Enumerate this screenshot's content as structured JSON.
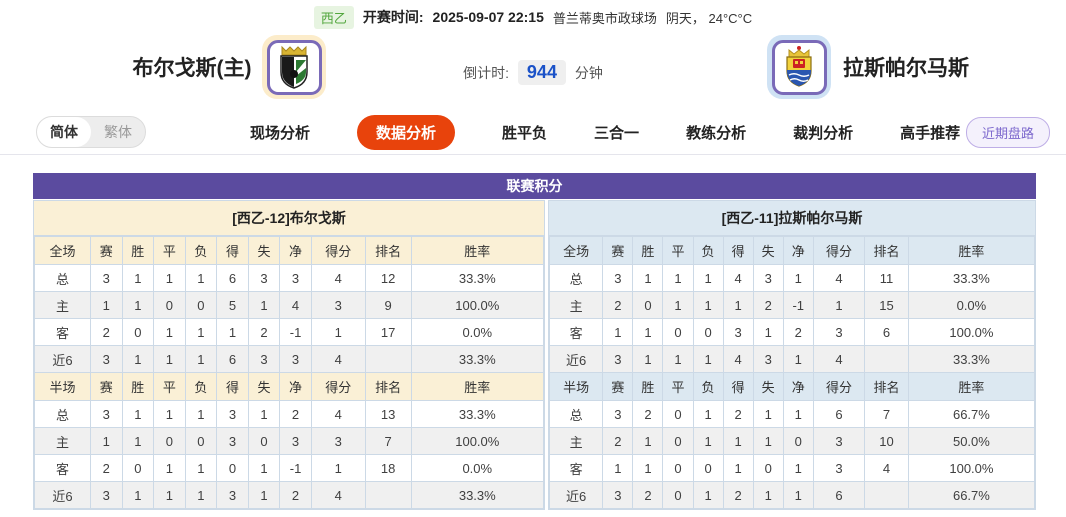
{
  "topbar": {
    "league_badge": "西乙",
    "kickoff_label": "开赛时间:",
    "kickoff_time": "2025-09-07 22:15",
    "venue": "普兰蒂奥市政球场",
    "weather": "阴天， 24°C°C"
  },
  "header": {
    "home_team": "布尔戈斯(主)",
    "away_team": "拉斯帕尔马斯",
    "countdown_label": "倒计时:",
    "countdown_value": "944",
    "countdown_unit": "分钟"
  },
  "nav": {
    "lang_simplified": "简体",
    "lang_traditional": "繁体",
    "tabs": [
      {
        "label": "现场分析",
        "active": false
      },
      {
        "label": "数据分析",
        "active": true
      },
      {
        "label": "胜平负",
        "active": false
      },
      {
        "label": "三合一",
        "active": false
      },
      {
        "label": "教练分析",
        "active": false
      },
      {
        "label": "裁判分析",
        "active": false
      },
      {
        "label": "高手推荐",
        "active": false
      }
    ],
    "recent_button": "近期盘路"
  },
  "stats": {
    "title": "联赛积分",
    "full_columns": [
      "全场",
      "赛",
      "胜",
      "平",
      "负",
      "得",
      "失",
      "净",
      "得分",
      "排名",
      "胜率"
    ],
    "half_columns": [
      "半场",
      "赛",
      "胜",
      "平",
      "负",
      "得",
      "失",
      "净",
      "得分",
      "排名",
      "胜率"
    ],
    "left": {
      "team_header": "[西乙-12]布尔戈斯",
      "full_rows": [
        {
          "label": "总",
          "type": "total",
          "cells": [
            "3",
            "1",
            "1",
            "1",
            "6",
            "3",
            "3",
            "4",
            "12",
            "33.3%"
          ]
        },
        {
          "label": "主",
          "type": "home",
          "cells": [
            "1",
            "1",
            "0",
            "0",
            "5",
            "1",
            "4",
            "3",
            "9",
            "100.0%"
          ]
        },
        {
          "label": "客",
          "type": "away",
          "cells": [
            "2",
            "0",
            "1",
            "1",
            "1",
            "2",
            "-1",
            "1",
            "17",
            "0.0%"
          ]
        },
        {
          "label": "近6",
          "type": "recent",
          "cells": [
            "3",
            "1",
            "1",
            "1",
            "6",
            "3",
            "3",
            "4",
            "",
            "33.3%"
          ]
        }
      ],
      "half_rows": [
        {
          "label": "总",
          "type": "total",
          "cells": [
            "3",
            "1",
            "1",
            "1",
            "3",
            "1",
            "2",
            "4",
            "13",
            "33.3%"
          ]
        },
        {
          "label": "主",
          "type": "home",
          "cells": [
            "1",
            "1",
            "0",
            "0",
            "3",
            "0",
            "3",
            "3",
            "7",
            "100.0%"
          ]
        },
        {
          "label": "客",
          "type": "away",
          "cells": [
            "2",
            "0",
            "1",
            "1",
            "0",
            "1",
            "-1",
            "1",
            "18",
            "0.0%"
          ]
        },
        {
          "label": "近6",
          "type": "recent",
          "cells": [
            "3",
            "1",
            "1",
            "1",
            "3",
            "1",
            "2",
            "4",
            "",
            "33.3%"
          ]
        }
      ]
    },
    "right": {
      "team_header": "[西乙-11]拉斯帕尔马斯",
      "full_rows": [
        {
          "label": "总",
          "type": "total",
          "cells": [
            "3",
            "1",
            "1",
            "1",
            "4",
            "3",
            "1",
            "4",
            "11",
            "33.3%"
          ]
        },
        {
          "label": "主",
          "type": "home",
          "cells": [
            "2",
            "0",
            "1",
            "1",
            "1",
            "2",
            "-1",
            "1",
            "15",
            "0.0%"
          ]
        },
        {
          "label": "客",
          "type": "away",
          "cells": [
            "1",
            "1",
            "0",
            "0",
            "3",
            "1",
            "2",
            "3",
            "6",
            "100.0%"
          ]
        },
        {
          "label": "近6",
          "type": "recent",
          "cells": [
            "3",
            "1",
            "1",
            "1",
            "4",
            "3",
            "1",
            "4",
            "",
            "33.3%"
          ]
        }
      ],
      "half_rows": [
        {
          "label": "总",
          "type": "total",
          "cells": [
            "3",
            "2",
            "0",
            "1",
            "2",
            "1",
            "1",
            "6",
            "7",
            "66.7%"
          ]
        },
        {
          "label": "主",
          "type": "home",
          "cells": [
            "2",
            "1",
            "0",
            "1",
            "1",
            "1",
            "0",
            "3",
            "10",
            "50.0%"
          ]
        },
        {
          "label": "客",
          "type": "away",
          "cells": [
            "1",
            "1",
            "0",
            "0",
            "1",
            "0",
            "1",
            "3",
            "4",
            "100.0%"
          ]
        },
        {
          "label": "近6",
          "type": "recent",
          "cells": [
            "3",
            "2",
            "0",
            "1",
            "2",
            "1",
            "1",
            "6",
            "",
            "66.7%"
          ]
        }
      ]
    }
  },
  "colors": {
    "title_purple": "#5b4b9f",
    "active_tab_orange": "#e8430c",
    "left_header_cream": "#faf0d6",
    "right_header_blue": "#dce8f1",
    "home_label_red": "#dd2222",
    "away_label_blue": "#2233cc",
    "countdown_blue": "#1b52c8",
    "badge_green": "#52a63d",
    "table_border": "#ccd9e6"
  }
}
